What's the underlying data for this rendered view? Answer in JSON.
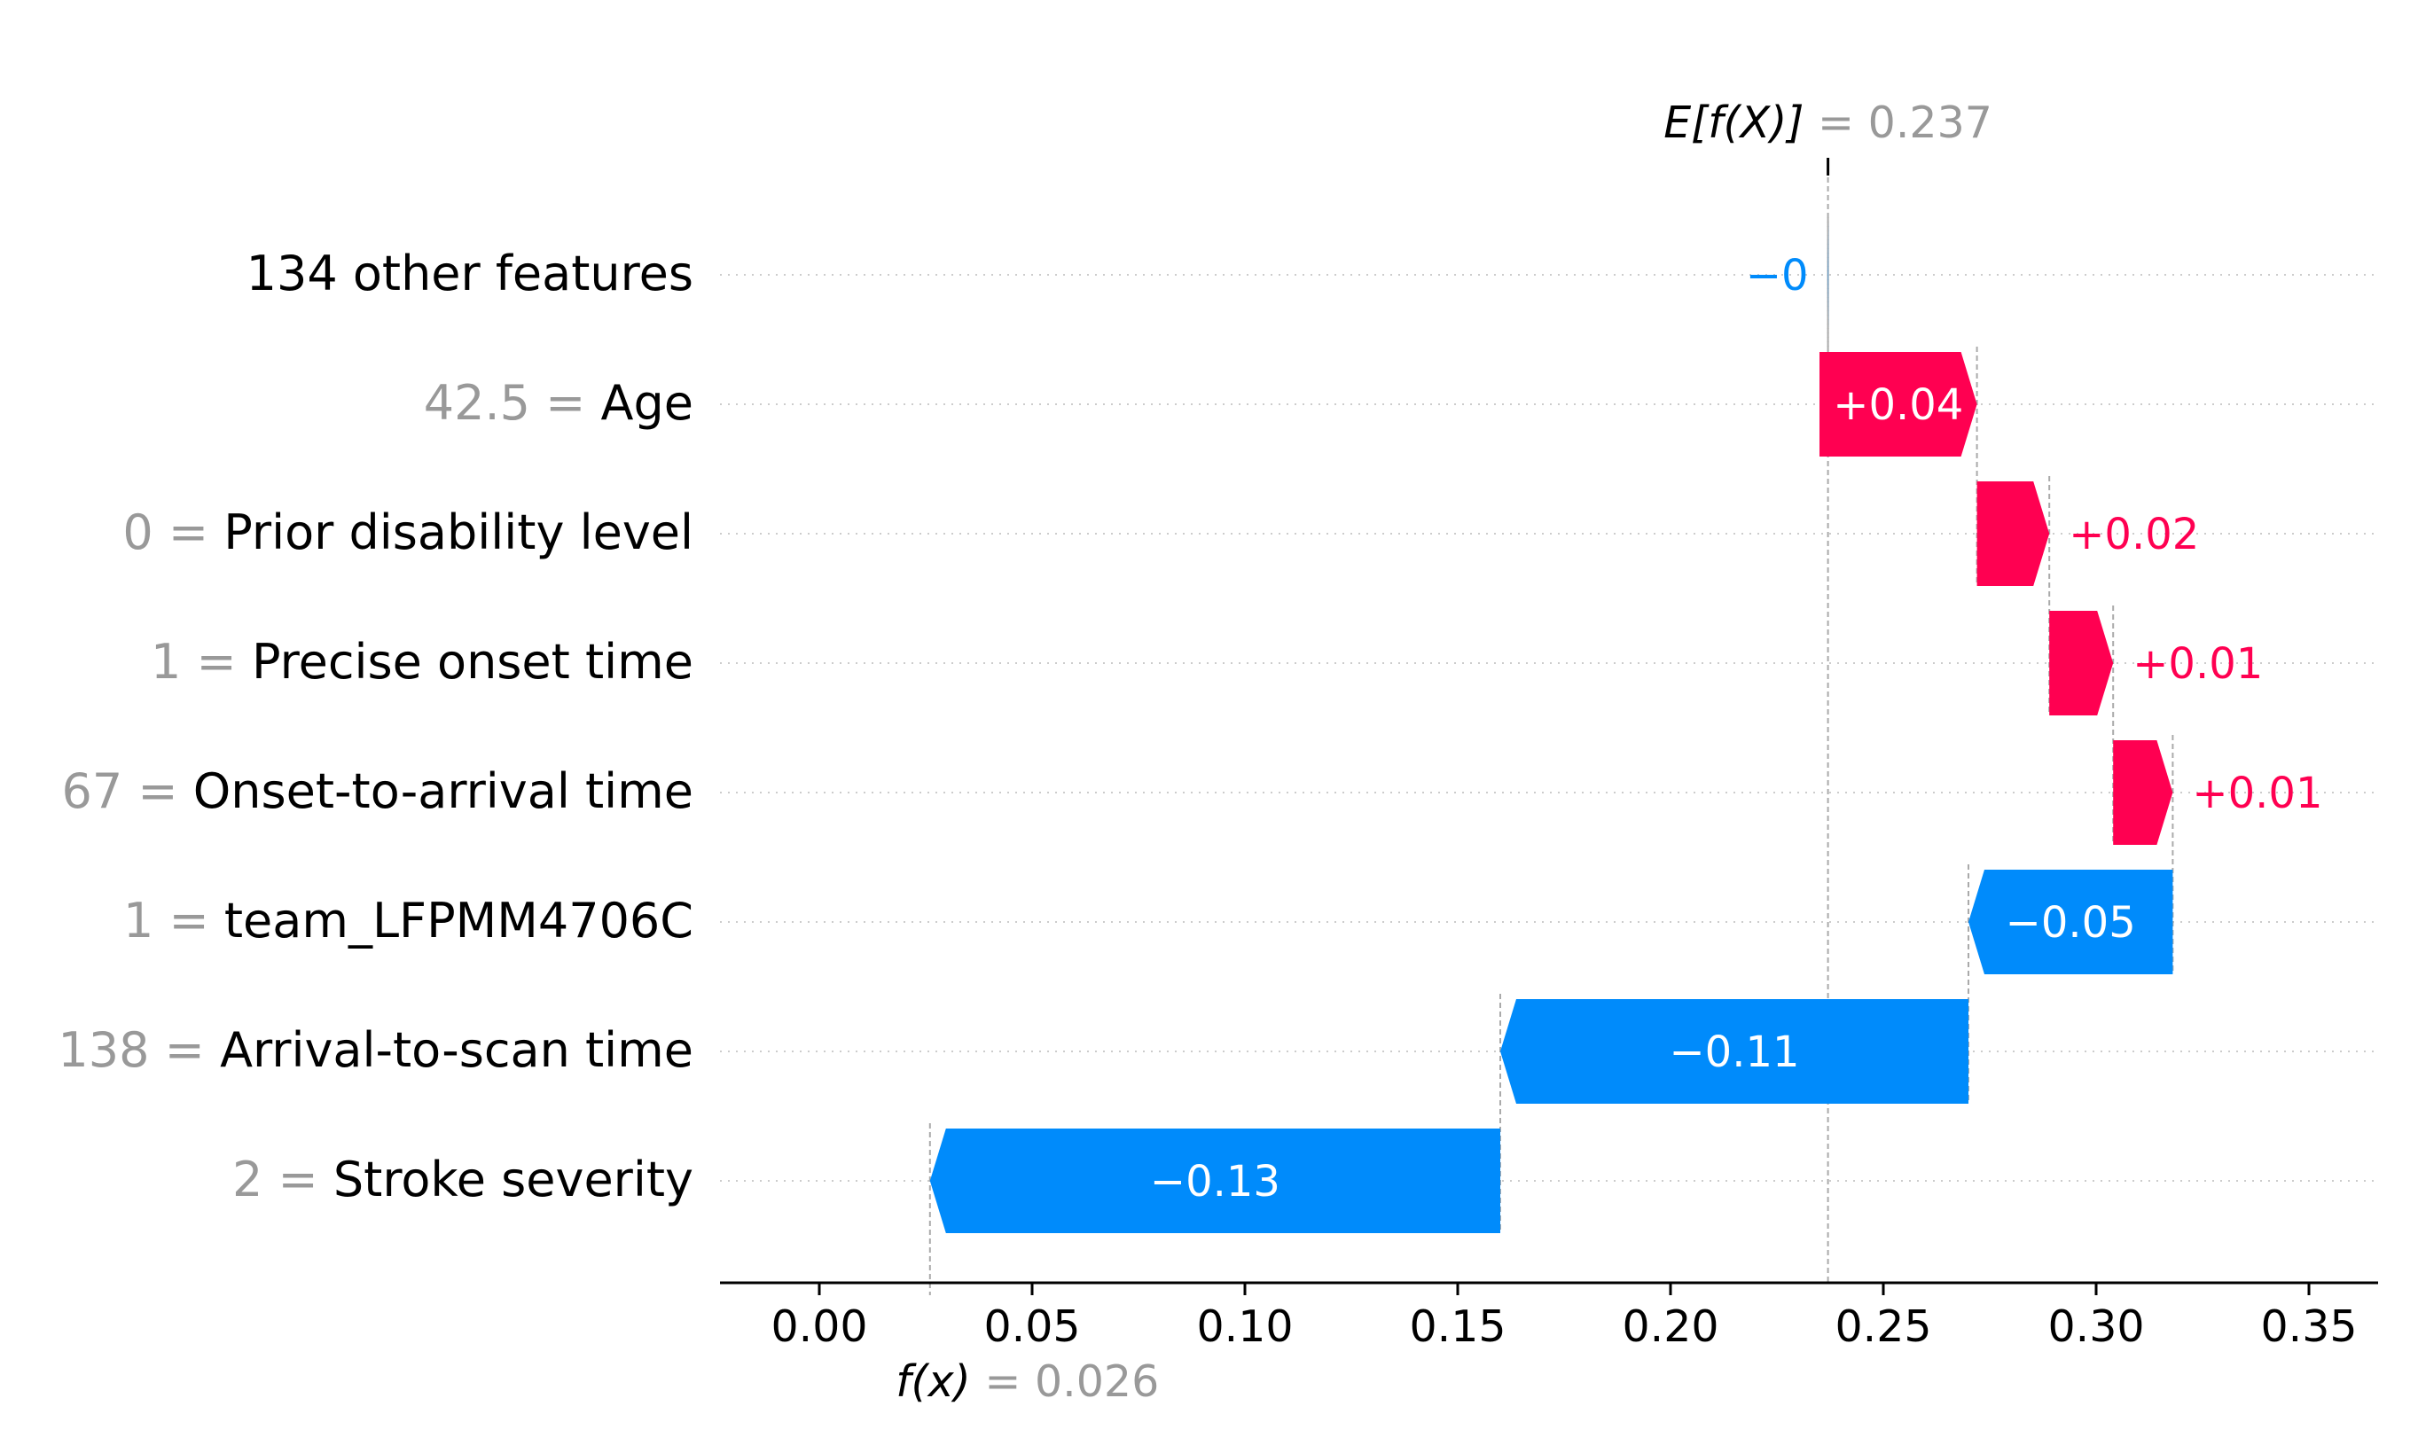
{
  "chart_data": {
    "type": "waterfall",
    "base_value": 0.237,
    "base_label_prefix": "E[f(X)]",
    "base_label_text": "= 0.237",
    "output_value": 0.026,
    "output_label_prefix": "f(x)",
    "output_label_text": "= 0.026",
    "xlim": [
      -0.023,
      0.367
    ],
    "xticks": [
      0.0,
      0.05,
      0.1,
      0.15,
      0.2,
      0.25,
      0.3,
      0.35
    ],
    "xtick_labels": [
      "0.00",
      "0.05",
      "0.10",
      "0.15",
      "0.20",
      "0.25",
      "0.30",
      "0.35"
    ],
    "features": [
      {
        "value_text": "",
        "name": "134 other features",
        "start": 0.2371,
        "end": 0.237,
        "label": "−0"
      },
      {
        "value_text": "42.5 = ",
        "name": "Age",
        "start": 0.235,
        "end": 0.272,
        "label": "+0.04"
      },
      {
        "value_text": "0 = ",
        "name": "Prior disability level",
        "start": 0.272,
        "end": 0.289,
        "label": "+0.02"
      },
      {
        "value_text": "1 = ",
        "name": "Precise onset time",
        "start": 0.289,
        "end": 0.304,
        "label": "+0.01"
      },
      {
        "value_text": "67 = ",
        "name": "Onset-to-arrival time",
        "start": 0.304,
        "end": 0.318,
        "label": "+0.01"
      },
      {
        "value_text": "1 = ",
        "name": "team_LFPMM4706C",
        "start": 0.318,
        "end": 0.27,
        "label": "−0.05"
      },
      {
        "value_text": "138 = ",
        "name": "Arrival-to-scan time",
        "start": 0.27,
        "end": 0.16,
        "label": "−0.11"
      },
      {
        "value_text": "2 = ",
        "name": "Stroke severity",
        "start": 0.16,
        "end": 0.026,
        "label": "−0.13"
      }
    ],
    "colors": {
      "positive": "#ff0051",
      "negative": "#008bfb",
      "feature_value": "#999999",
      "grid": "#cccccc",
      "axis": "#000000"
    },
    "grid": true
  }
}
